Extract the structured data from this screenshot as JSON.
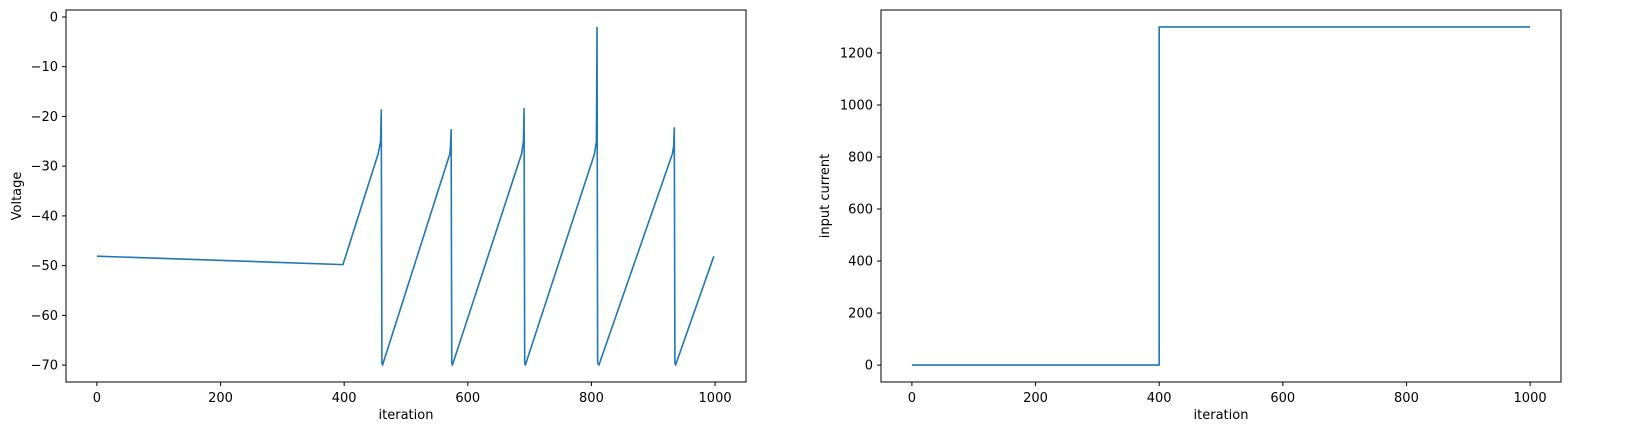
{
  "chart_data": [
    {
      "type": "line",
      "title": "",
      "xlabel": "iteration",
      "ylabel": "Voltage",
      "xlim": [
        -50,
        1050
      ],
      "ylim": [
        -73.4,
        1.4
      ],
      "xticks": [
        0,
        200,
        400,
        600,
        800,
        1000
      ],
      "yticks": [
        0,
        -10,
        -20,
        -30,
        -40,
        -50,
        -60,
        -70
      ],
      "grid": false,
      "color": "#1f77b4",
      "series": [
        {
          "x": [
            0,
            398,
            455,
            459,
            460,
            461,
            462,
            571,
            572,
            573,
            574,
            575,
            687,
            690,
            691,
            692,
            693,
            805,
            808,
            809,
            810,
            812,
            931,
            933,
            934,
            935,
            936,
            998
          ],
          "y": [
            -48.1,
            -49.8,
            -27.5,
            -25,
            -18.7,
            -69.5,
            -70,
            -27.5,
            -26,
            -22.7,
            -69.5,
            -70,
            -27.5,
            -25,
            -18.4,
            -69.5,
            -70,
            -27.5,
            -25,
            -2.1,
            -69.5,
            -70,
            -27.5,
            -26,
            -22.3,
            -69.5,
            -70,
            -48.1
          ]
        }
      ]
    },
    {
      "type": "line",
      "title": "",
      "xlabel": "iteration",
      "ylabel": "input current",
      "xlim": [
        -50,
        1050
      ],
      "ylim": [
        -65,
        1365
      ],
      "xticks": [
        0,
        200,
        400,
        600,
        800,
        1000
      ],
      "yticks": [
        0,
        200,
        400,
        600,
        800,
        1000,
        1200
      ],
      "grid": false,
      "color": "#1f77b4",
      "series": [
        {
          "x": [
            0,
            400,
            400,
            1000
          ],
          "y": [
            0,
            0,
            1300,
            1300
          ]
        }
      ]
    }
  ]
}
